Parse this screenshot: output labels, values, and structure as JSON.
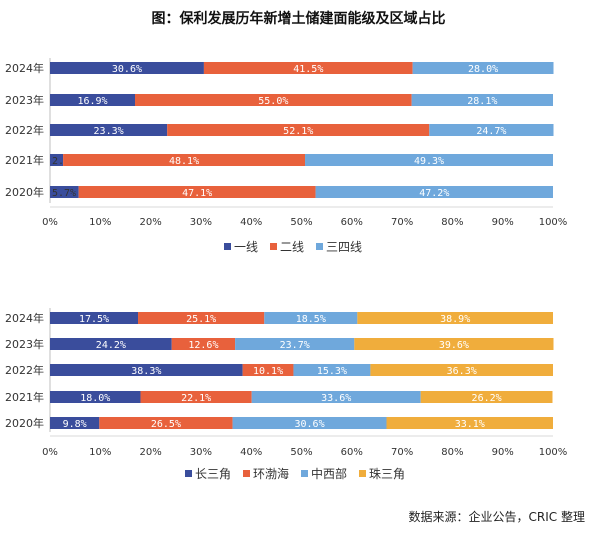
{
  "title": "图：保利发展历年新增土储建面能级及区域占比",
  "source": "数据来源：企业公告，CRIC 整理",
  "chart_data": [
    {
      "type": "bar",
      "stacked": true,
      "orientation": "horizontal",
      "percent": true,
      "categories": [
        "2024年",
        "2023年",
        "2022年",
        "2021年",
        "2020年"
      ],
      "series": [
        {
          "name": "一线",
          "color": "#3a4d9c",
          "values": [
            30.6,
            16.9,
            23.3,
            2.6,
            5.7
          ]
        },
        {
          "name": "二线",
          "color": "#e8613c",
          "values": [
            41.5,
            55.0,
            52.1,
            48.1,
            47.1
          ]
        },
        {
          "name": "三四线",
          "color": "#6fa8dc",
          "values": [
            28.0,
            28.1,
            24.7,
            49.3,
            47.2
          ]
        }
      ],
      "x_ticks": [
        "0%",
        "10%",
        "20%",
        "30%",
        "40%",
        "50%",
        "60%",
        "70%",
        "80%",
        "90%",
        "100%"
      ],
      "xlim": [
        0,
        100
      ],
      "legend": "bottom",
      "grid": false
    },
    {
      "type": "bar",
      "stacked": true,
      "orientation": "horizontal",
      "percent": true,
      "categories": [
        "2024年",
        "2023年",
        "2022年",
        "2021年",
        "2020年"
      ],
      "series": [
        {
          "name": "长三角",
          "color": "#3a4d9c",
          "values": [
            17.5,
            24.2,
            38.3,
            18.0,
            9.8
          ]
        },
        {
          "name": "环渤海",
          "color": "#e8613c",
          "values": [
            25.1,
            12.6,
            10.1,
            22.1,
            26.5
          ]
        },
        {
          "name": "中西部",
          "color": "#6fa8dc",
          "values": [
            18.5,
            23.7,
            15.3,
            33.6,
            30.6
          ]
        },
        {
          "name": "珠三角",
          "color": "#f0ad3c",
          "values": [
            38.9,
            39.6,
            36.3,
            26.2,
            33.1
          ]
        }
      ],
      "x_ticks": [
        "0%",
        "10%",
        "20%",
        "30%",
        "40%",
        "50%",
        "60%",
        "70%",
        "80%",
        "90%",
        "100%"
      ],
      "xlim": [
        0,
        100
      ],
      "legend": "bottom",
      "grid": false
    }
  ]
}
